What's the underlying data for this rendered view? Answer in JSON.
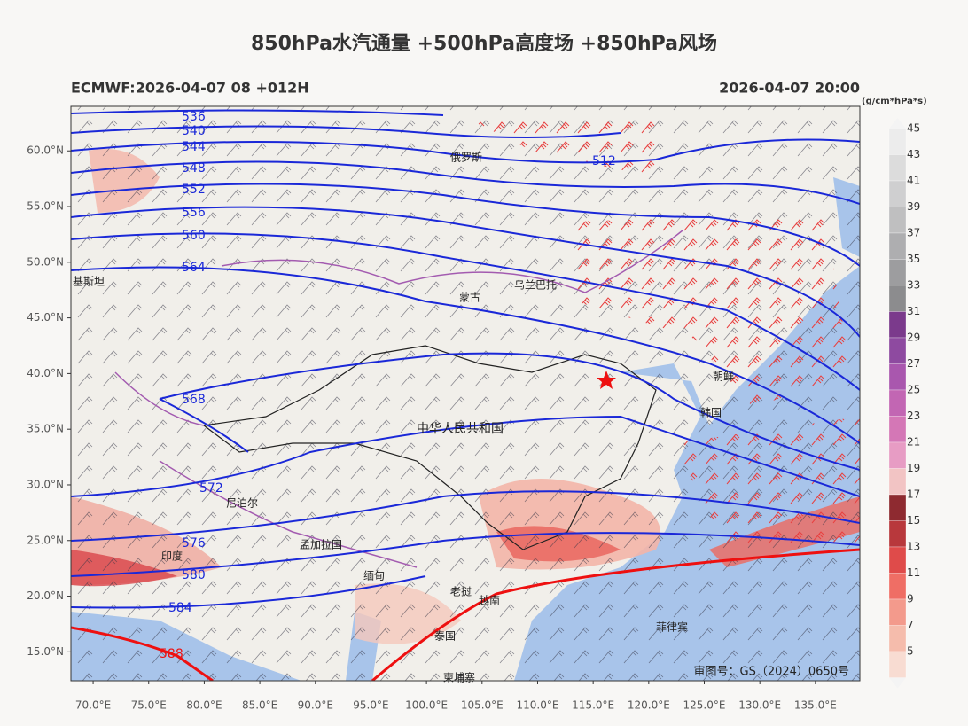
{
  "header": {
    "title": "850hPa水汽通量 +500hPa高度场 +850hPa风场",
    "model_run": "ECMWF:2026-04-07 08 +012H",
    "valid_time": "2026-04-07 20:00"
  },
  "map": {
    "lon_range": [
      68,
      139
    ],
    "lat_range": [
      12.4,
      64
    ],
    "lat_ticks": [
      {
        "value": 60,
        "label": "60.0°N"
      },
      {
        "value": 55,
        "label": "55.0°N"
      },
      {
        "value": 50,
        "label": "50.0°N"
      },
      {
        "value": 45,
        "label": "45.0°N"
      },
      {
        "value": 40,
        "label": "40.0°N"
      },
      {
        "value": 35,
        "label": "35.0°N"
      },
      {
        "value": 30,
        "label": "30.0°N"
      },
      {
        "value": 25,
        "label": "25.0°N"
      },
      {
        "value": 20,
        "label": "20.0°N"
      },
      {
        "value": 15,
        "label": "15.0°N"
      }
    ],
    "lon_ticks": [
      {
        "value": 70,
        "label": "70.0°E"
      },
      {
        "value": 75,
        "label": "75.0°E"
      },
      {
        "value": 80,
        "label": "80.0°E"
      },
      {
        "value": 85,
        "label": "85.0°E"
      },
      {
        "value": 90,
        "label": "90.0°E"
      },
      {
        "value": 95,
        "label": "95.0°E"
      },
      {
        "value": 100,
        "label": "100.0°E"
      },
      {
        "value": 105,
        "label": "105.0°E"
      },
      {
        "value": 110,
        "label": "110.0°E"
      },
      {
        "value": 115,
        "label": "115.0°E"
      },
      {
        "value": 120,
        "label": "120.0°E"
      },
      {
        "value": 125,
        "label": "125.0°E"
      },
      {
        "value": 130,
        "label": "130.0°E"
      },
      {
        "value": 135,
        "label": "135.0°E"
      }
    ],
    "contour_labels": [
      "536",
      "540",
      "544",
      "548",
      "552",
      "556",
      "560",
      "564",
      "568",
      "572",
      "576",
      "580",
      "584",
      "588",
      "512"
    ],
    "place_labels": [
      "俄罗斯",
      "蒙古",
      "中华人民共和国",
      "朝鲜",
      "韩国",
      "印度",
      "尼泊尔",
      "孟加拉国",
      "缅甸",
      "泰国",
      "老挝",
      "越南",
      "菲律宾",
      "柬埔寨",
      "乌兰巴托",
      "基斯坦"
    ],
    "approval": "审图号：GS（2024）0650号"
  },
  "colorbar": {
    "unit": "(g/cm*hPa*s)",
    "levels": [
      45,
      43,
      41,
      39,
      37,
      35,
      33,
      31,
      29,
      27,
      25,
      23,
      21,
      19,
      17,
      15,
      13,
      11,
      9,
      7,
      5
    ],
    "colors": [
      "#ececec",
      "#dcdcdc",
      "#cfcfd0",
      "#bfbfc0",
      "#aeaeb0",
      "#9d9d9f",
      "#8c8c8e",
      "#7b3a8c",
      "#8e4aa0",
      "#a957ae",
      "#c266b3",
      "#d477b6",
      "#e79cc4",
      "#f2c4c4",
      "#8e2a30",
      "#b8383c",
      "#df4b4a",
      "#ef6e65",
      "#f39a8c",
      "#f5bcac",
      "#f8dcd2"
    ]
  }
}
